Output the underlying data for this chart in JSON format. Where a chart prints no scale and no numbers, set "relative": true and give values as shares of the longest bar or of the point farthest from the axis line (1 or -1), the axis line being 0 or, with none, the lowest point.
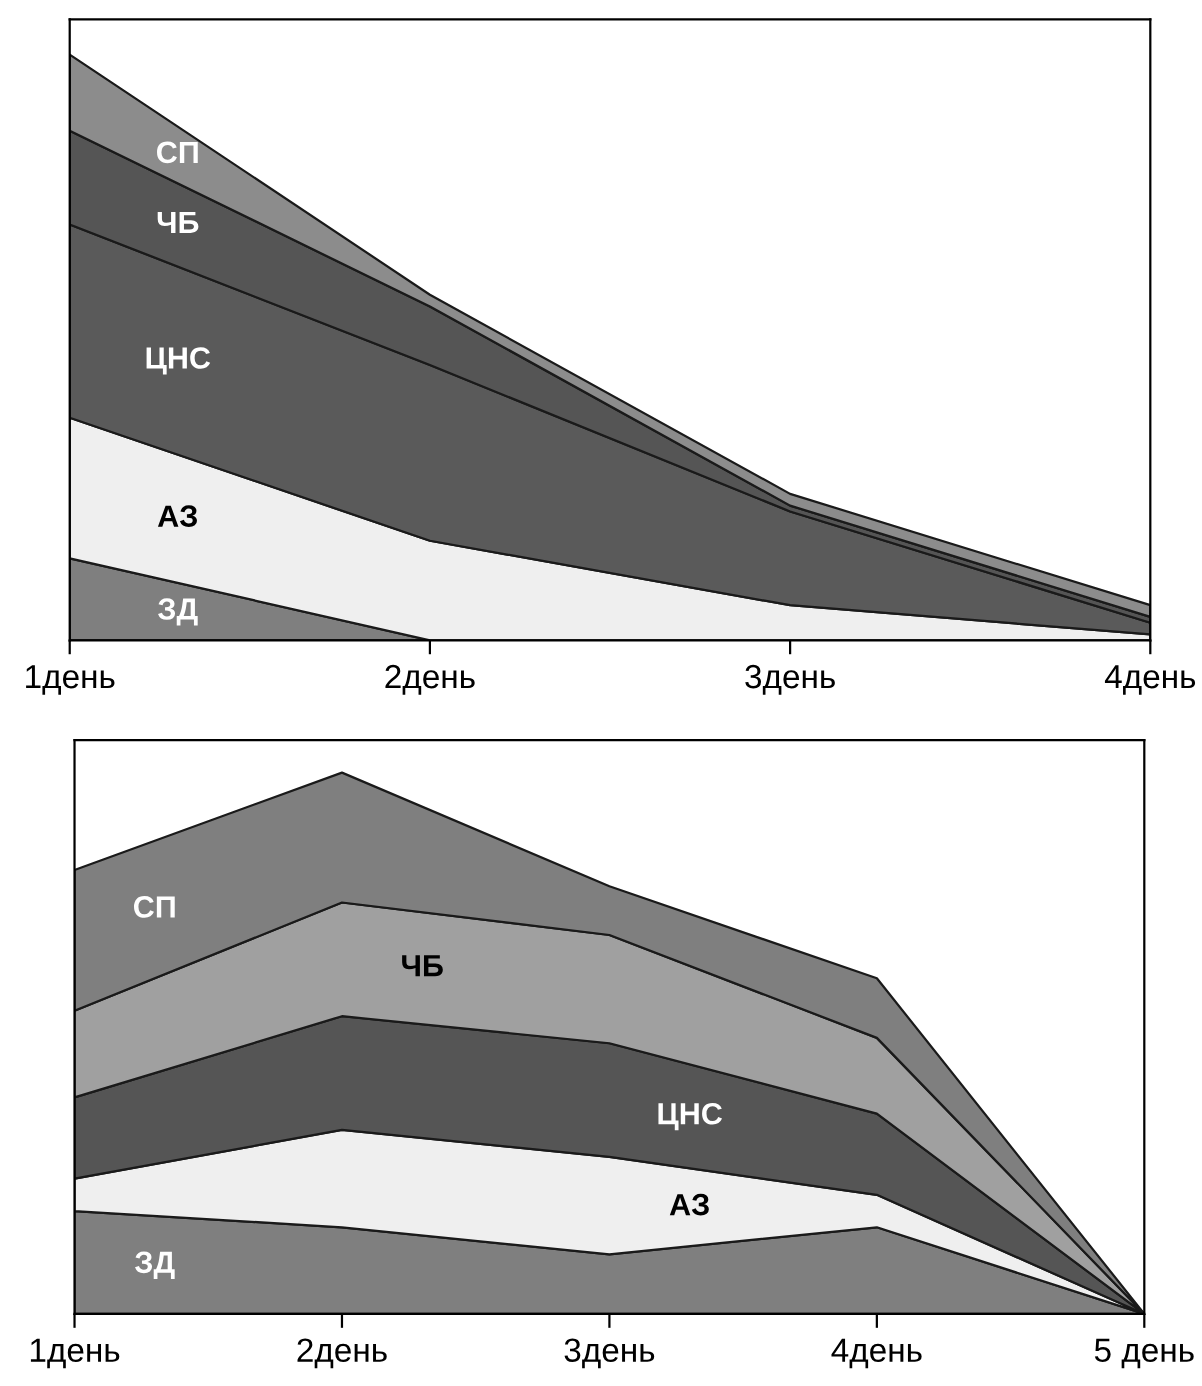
{
  "chart_data": [
    {
      "type": "area",
      "stacked": true,
      "relative": true,
      "categories": [
        "1день",
        "2день",
        "3день",
        "4день"
      ],
      "series": [
        {
          "name": "ЗД",
          "color": "#7f7f7f",
          "values": [
            0.14,
            0,
            0,
            0
          ]
        },
        {
          "name": "АЗ",
          "color": "#efefef",
          "values": [
            0.24,
            0.17,
            0.06,
            0.01
          ]
        },
        {
          "name": "ЦНС",
          "color": "#5a5a5a",
          "values": [
            0.33,
            0.3,
            0.16,
            0.02
          ]
        },
        {
          "name": "ЧБ",
          "color": "#555555",
          "values": [
            0.16,
            0.1,
            0.01,
            0.01
          ]
        },
        {
          "name": "СП",
          "color": "#8c8c8c",
          "values": [
            0.13,
            0.02,
            0.02,
            0.02
          ]
        }
      ]
    },
    {
      "type": "area",
      "stacked": true,
      "relative": true,
      "categories": [
        "1день",
        "2день",
        "3день",
        "4день",
        "5 день"
      ],
      "series": [
        {
          "name": "ЗД",
          "color": "#7f7f7f",
          "values": [
            0.19,
            0.16,
            0.11,
            0.16,
            0
          ]
        },
        {
          "name": "АЗ",
          "color": "#efefef",
          "values": [
            0.06,
            0.18,
            0.18,
            0.06,
            0
          ]
        },
        {
          "name": "ЦНС",
          "color": "#555555",
          "values": [
            0.15,
            0.21,
            0.21,
            0.15,
            0
          ]
        },
        {
          "name": "ЧБ",
          "color": "#a0a0a0",
          "values": [
            0.16,
            0.21,
            0.2,
            0.14,
            0
          ]
        },
        {
          "name": "СП",
          "color": "#7f7f7f",
          "values": [
            0.26,
            0.24,
            0.09,
            0.11,
            0
          ]
        }
      ]
    }
  ]
}
